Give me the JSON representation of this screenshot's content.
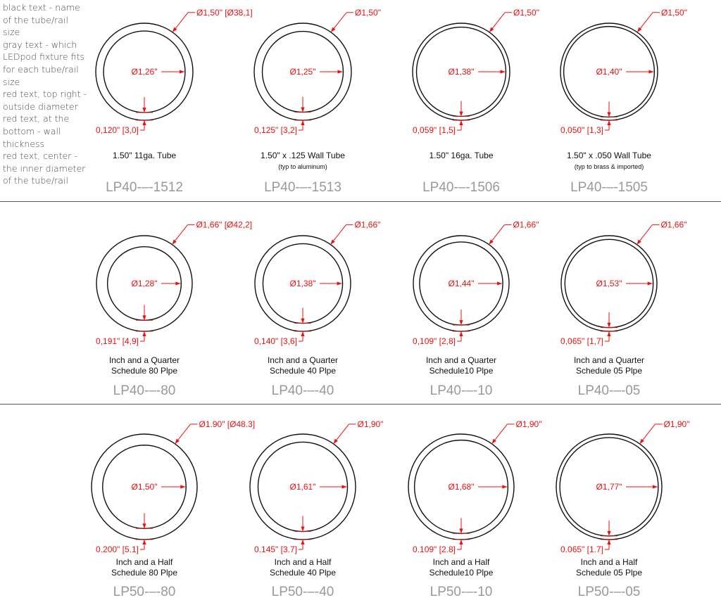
{
  "legend": [
    "black text - name",
    "of the tube/rail",
    "size",
    "gray text - which",
    "LEDpod fixture fits",
    "for each tube/rail",
    "size",
    "red text, top right -",
    "outside diameter",
    "red text, at the",
    "bottom - wall",
    "thickness",
    "red text, center -",
    "the inner diameter",
    "of the tube/rail"
  ],
  "colors": {
    "dimension": "#ee1111",
    "name": "#111111",
    "part": "#999999",
    "outline": "#111111"
  },
  "rows": [
    {
      "items": [
        {
          "od": "Ø1,50\" [Ø38,1]",
          "id": "Ø1,26\"",
          "wall": "0,120\" [3,0]",
          "name": [
            "1.50\"  11ga. Tube"
          ],
          "sub": "",
          "part": "LP40-–-1512",
          "wall_ratio": 0.16
        },
        {
          "od": "Ø1,50\"",
          "id": "Ø1,25\"",
          "wall": "0,125\" [3,2]",
          "name": [
            "1.50\" x .125 Wall Tube"
          ],
          "sub": "(typ to aluminum)",
          "part": "LP40-–-1513",
          "wall_ratio": 0.167
        },
        {
          "od": "Ø1,50\"",
          "id": "Ø1,38\"",
          "wall": "0,059\" [1,5]",
          "name": [
            "1.50\"  16ga. Tube"
          ],
          "sub": "",
          "part": "LP40-–-1506",
          "wall_ratio": 0.08
        },
        {
          "od": "Ø1,50\"",
          "id": "Ø1,40\"",
          "wall": "0,050\" [1,3]",
          "name": [
            "1.50\" x .050 Wall Tube"
          ],
          "sub": "(typ to brass & imported)",
          "part": "LP40-–-1505",
          "wall_ratio": 0.067
        }
      ]
    },
    {
      "items": [
        {
          "od": "Ø1,66\" [Ø42,2]",
          "id": "Ø1,28\"",
          "wall": "0,191\" [4,9]",
          "name": [
            "Inch and a Quarter",
            "Schedule 80  Plpe"
          ],
          "sub": "",
          "part": "LP40-–-80",
          "wall_ratio": 0.23
        },
        {
          "od": "Ø1,66\"",
          "id": "Ø1,38\"",
          "wall": "0,140\" [3,6]",
          "name": [
            "Inch and a Quarter",
            "Schedule 40  Plpe"
          ],
          "sub": "",
          "part": "LP40-–-40",
          "wall_ratio": 0.168
        },
        {
          "od": "Ø1,66\"",
          "id": "Ø1,44\"",
          "wall": "0,109\" [2,8]",
          "name": [
            "Inch and a Quarter",
            "Schedule10 Plpe"
          ],
          "sub": "",
          "part": "LP40-–-10",
          "wall_ratio": 0.131
        },
        {
          "od": "Ø1,66\"",
          "id": "Ø1,53\"",
          "wall": "0,065\" [1,7]",
          "name": [
            "Inch and a Quarter",
            "Schedule 05  Plpe"
          ],
          "sub": "",
          "part": "LP40-–-05",
          "wall_ratio": 0.078
        }
      ]
    },
    {
      "items": [
        {
          "od": "Ø1.90\" [Ø48.3]",
          "id": "Ø1,50\"",
          "wall": "0.200\" [5.1]",
          "name": [
            "Inch and a Half",
            "Schedule 80 Plpe"
          ],
          "sub": "",
          "part": "LP50-–-80",
          "wall_ratio": 0.21
        },
        {
          "od": "Ø1,90\"",
          "id": "Ø1,61\"",
          "wall": "0.145\" [3.7]",
          "name": [
            "Inch and a Half",
            "Schedule 40 Plpe"
          ],
          "sub": "",
          "part": "LP50-–-40",
          "wall_ratio": 0.153
        },
        {
          "od": "Ø1,90\"",
          "id": "Ø1,68\"",
          "wall": "0.109\" [2.8]",
          "name": [
            "Inch and a Half",
            "Schedule10 Plpe"
          ],
          "sub": "",
          "part": "LP50-–-10",
          "wall_ratio": 0.115
        },
        {
          "od": "Ø1,90\"",
          "id": "Ø1,77\"",
          "wall": "0.065\" [1.7]",
          "name": [
            "Inch and a Half",
            "Schedule 05 Plpe"
          ],
          "sub": "",
          "part": "LP50-–-05",
          "wall_ratio": 0.068
        }
      ]
    }
  ]
}
